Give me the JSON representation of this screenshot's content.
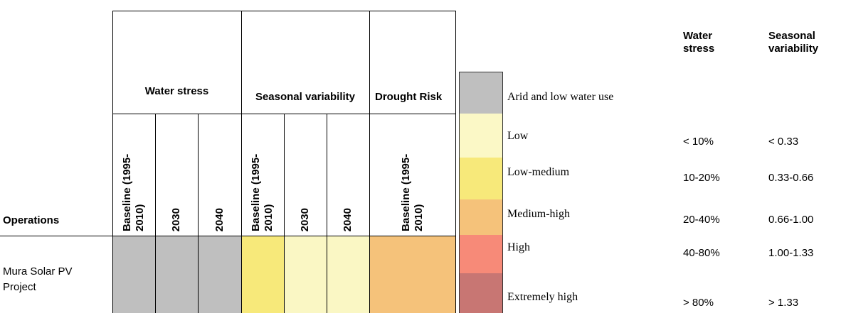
{
  "table": {
    "operations_header": "Operations",
    "groups": [
      "Water stress",
      "Seasonal variability",
      "Drought Risk"
    ],
    "subheaders": [
      "Baseline (1995-2010)",
      "2030",
      "2040",
      "Baseline (1995-2010)",
      "2030",
      "2040",
      "Baseline (1995-2010)"
    ],
    "rows": [
      {
        "name": "Mura Solar PV Project",
        "colors": [
          "#bfbfbf",
          "#bfbfbf",
          "#bfbfbf",
          "#f7e97a",
          "#faf7c4",
          "#faf7c4",
          "#f5c27a"
        ]
      }
    ]
  },
  "legend": {
    "headers": [
      "Water stress",
      "Seasonal variability"
    ],
    "items": [
      {
        "label": "Arid and low water use",
        "color": "#bfbfbf"
      },
      {
        "label": "Low",
        "color": "#fbf8c6",
        "water_stress": "< 10%",
        "seasonal_variability": "< 0.33"
      },
      {
        "label": "Low-medium",
        "color": "#f7e97a",
        "water_stress": "10-20%",
        "seasonal_variability": "0.33-0.66"
      },
      {
        "label": "Medium-high",
        "color": "#f5c27a",
        "water_stress": "20-40%",
        "seasonal_variability": "0.66-1.00"
      },
      {
        "label": "High",
        "color": "#f78a78",
        "water_stress": "40-80%",
        "seasonal_variability": "1.00-1.33"
      },
      {
        "label": "Extremely high",
        "color": "#c87673",
        "water_stress": "> 80%",
        "seasonal_variability": "> 1.33"
      }
    ]
  }
}
